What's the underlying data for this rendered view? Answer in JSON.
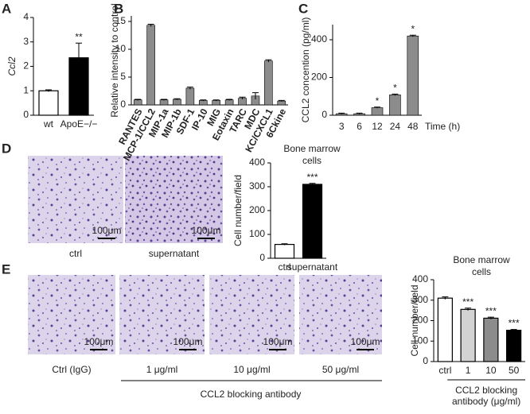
{
  "panel_labels": [
    "A",
    "B",
    "C",
    "D",
    "E"
  ],
  "micrographs_D": [
    {
      "label": "ctrl",
      "scale_bar": "100μm"
    },
    {
      "label": "supernatant",
      "scale_bar": "100μm"
    }
  ],
  "micrographs_E": [
    {
      "label": "Ctrl (IgG)",
      "scale_bar": "100μm"
    },
    {
      "label": "1 μg/ml",
      "scale_bar": "100μm"
    },
    {
      "label": "10 μg/ml",
      "scale_bar": "100μm"
    },
    {
      "label": "50 μg/ml",
      "scale_bar": "100μm"
    }
  ],
  "micrographs_E_group": "CCL2 blocking antibody",
  "chart_data": [
    {
      "type": "bar",
      "ylabel": "Ccl2",
      "categories": [
        "wt",
        "ApoE−/−"
      ],
      "values": [
        1,
        2.35
      ],
      "errors": [
        0.04,
        0.6
      ],
      "significance": [
        null,
        "**"
      ],
      "colors": [
        "#ffffff",
        "#000000"
      ],
      "ylim": [
        0,
        4
      ],
      "yticks": [
        0,
        1,
        2,
        3,
        4
      ]
    },
    {
      "type": "bar",
      "ylabel": "Relative intensity to control",
      "categories": [
        "RANTES",
        "MCP-1/CCL2",
        "MIP-1a",
        "MIP-1b",
        "SDF-1",
        "IP-10",
        "MIG",
        "Eotaxin",
        "TARC",
        "MDC",
        "KC/CXCL1",
        "6Ckine"
      ],
      "values": [
        0.9,
        14.3,
        0.9,
        1.0,
        3.0,
        0.8,
        0.8,
        0.9,
        1.2,
        1.6,
        7.9,
        0.7
      ],
      "errors": [
        0.1,
        0.2,
        0.1,
        0.1,
        0.2,
        0.1,
        0.1,
        0.1,
        0.2,
        0.6,
        0.2,
        0.1
      ],
      "color": "#8c8c8c",
      "ylim": [
        0,
        16
      ],
      "yticks": [
        0,
        5,
        10,
        15
      ]
    },
    {
      "type": "bar",
      "ylabel": "CCL2 concention (pg/ml)",
      "xlabel": "Time (h)",
      "categories": [
        "3",
        "6",
        "12",
        "24",
        "48"
      ],
      "values": [
        8,
        8,
        40,
        108,
        420
      ],
      "errors": [
        3,
        3,
        3,
        4,
        4
      ],
      "significance": [
        null,
        null,
        "*",
        "*",
        "*"
      ],
      "color": "#8c8c8c",
      "ylim": [
        0,
        480
      ],
      "yticks": [
        0,
        200,
        400
      ]
    },
    {
      "type": "bar",
      "title_lines": [
        "Bone marrow",
        "cells"
      ],
      "ylabel": "Cell number/field",
      "categories": [
        "ctrl",
        "supernatant"
      ],
      "values": [
        58,
        310
      ],
      "errors": [
        3,
        4
      ],
      "significance": [
        null,
        "***"
      ],
      "colors": [
        "#ffffff",
        "#000000"
      ],
      "ylim": [
        0,
        400
      ],
      "yticks": [
        0,
        100,
        200,
        300,
        400
      ]
    },
    {
      "type": "bar",
      "title_lines": [
        "Bone marrow",
        "cells"
      ],
      "ylabel": "Cell number/field",
      "categories": [
        "ctrl",
        "1",
        "10",
        "50"
      ],
      "values": [
        310,
        255,
        212,
        153
      ],
      "errors": [
        6,
        6,
        5,
        4
      ],
      "significance": [
        null,
        "***",
        "***",
        "***"
      ],
      "colors": [
        "#ffffff",
        "#d3d3d3",
        "#8c8c8c",
        "#000000"
      ],
      "group_label_lines": [
        "CCL2 blocking",
        "antibody (μg/ml)"
      ],
      "ylim": [
        0,
        400
      ],
      "yticks": [
        0,
        100,
        200,
        300,
        400
      ]
    }
  ]
}
